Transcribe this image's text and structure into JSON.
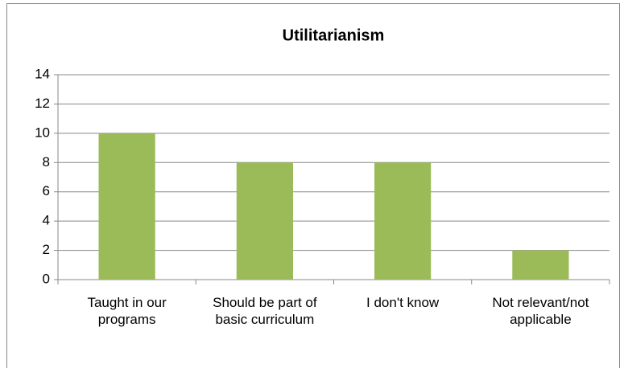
{
  "chart_data": {
    "type": "bar",
    "title": "Utilitarianism",
    "categories": [
      "Taught in our programs",
      "Should be part of basic curriculum",
      "I don't know",
      "Not relevant/not applicable"
    ],
    "values": [
      10,
      8,
      8,
      2
    ],
    "color": "#9bbb59",
    "ylim": [
      0,
      14
    ],
    "yticks": [
      0,
      2,
      4,
      6,
      8,
      10,
      12,
      14
    ],
    "grid": true
  }
}
